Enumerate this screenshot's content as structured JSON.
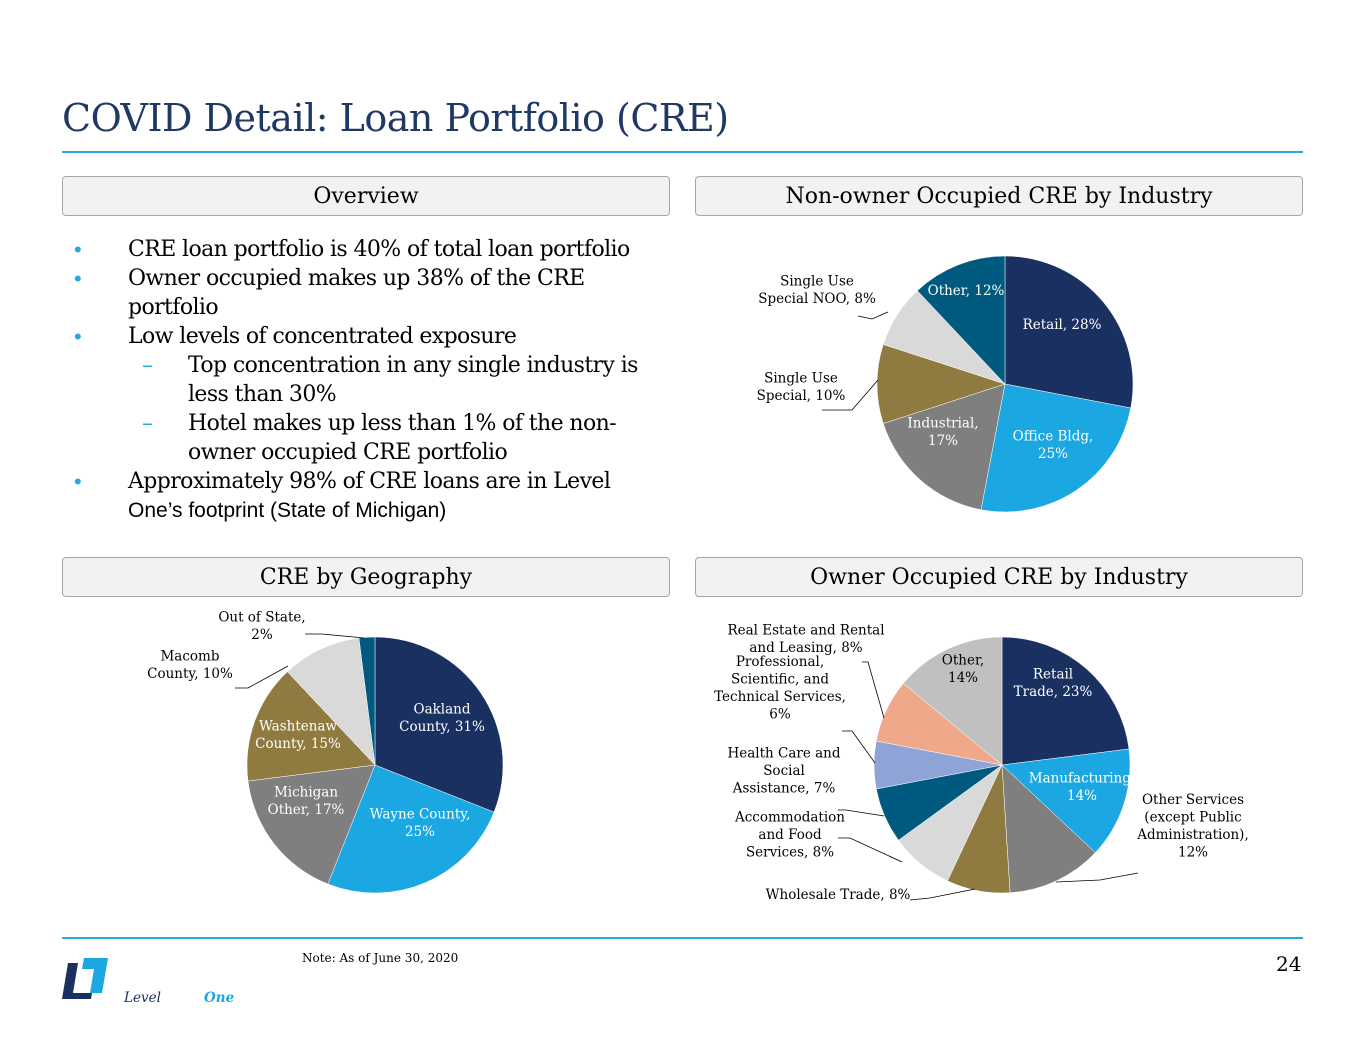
{
  "title": "COVID Detail: Loan Portfolio (CRE)",
  "panels": {
    "overview": "Overview",
    "non_owner": "Non-owner Occupied CRE by Industry",
    "geography": "CRE by Geography",
    "owner": "Owner Occupied CRE by Industry"
  },
  "overview": {
    "b1": "CRE loan portfolio is 40% of total loan portfolio",
    "b2_line1": "Owner occupied makes up 38% of the CRE",
    "b2_line2": "portfolio",
    "b3": "Low levels of concentrated exposure",
    "s1_line1": "Top concentration in any single industry is",
    "s1_line2": "less than 30%",
    "s2_line1": "Hotel makes up less than 1% of the non-",
    "s2_line2": "owner occupied CRE portfolio",
    "b4_line1": "Approximately 98% of CRE loans are in Level",
    "b4_line2": "One’s footprint (State of Michigan)",
    "bullet_glyph": "•",
    "dash_glyph": "–"
  },
  "note": "Note: As of June 30, 2020",
  "page_number": "24",
  "logo": {
    "icon": "levelone-logo-icon",
    "word_level": "Level",
    "word_one": "One"
  },
  "colors": {
    "title": "#1f3864",
    "accent": "#2aa7de",
    "navy": "#1a3060",
    "sky": "#1aa7e2",
    "gray": "#7f7f7f",
    "olive": "#8f7b3f",
    "lightgray": "#d9d9d9",
    "teal": "#005a80",
    "silver": "#c0c0c0",
    "salmon": "#f0a88a",
    "periwinkle": "#8ea3d6"
  },
  "chart_data": [
    {
      "id": "non_owner",
      "type": "pie",
      "title": "Non-owner Occupied CRE by Industry",
      "slices": [
        {
          "label": [
            "Retail, 28%"
          ],
          "value": 28,
          "color": "#1a3060"
        },
        {
          "label": [
            "Office Bldg,",
            "25%"
          ],
          "value": 25,
          "color": "#1aa7e2"
        },
        {
          "label": [
            "Industrial,",
            "17%"
          ],
          "value": 17,
          "color": "#7f7f7f"
        },
        {
          "label": [
            "Single Use",
            "Special, 10%"
          ],
          "value": 10,
          "color": "#8f7b3f"
        },
        {
          "label": [
            "Single Use",
            "Special NOO, 8%"
          ],
          "value": 8,
          "color": "#d9d9d9"
        },
        {
          "label": [
            "Other, 12%"
          ],
          "value": 12,
          "color": "#005a80"
        }
      ]
    },
    {
      "id": "geography",
      "type": "pie",
      "title": "CRE by Geography",
      "slices": [
        {
          "label": [
            "Oakland",
            "County, 31%"
          ],
          "value": 31,
          "color": "#1a3060"
        },
        {
          "label": [
            "Wayne County,",
            "25%"
          ],
          "value": 25,
          "color": "#1aa7e2"
        },
        {
          "label": [
            "Michigan",
            "Other, 17%"
          ],
          "value": 17,
          "color": "#7f7f7f"
        },
        {
          "label": [
            "Washtenaw",
            "County, 15%"
          ],
          "value": 15,
          "color": "#8f7b3f"
        },
        {
          "label": [
            "Macomb",
            "County, 10%"
          ],
          "value": 10,
          "color": "#d9d9d9"
        },
        {
          "label": [
            "Out of State,",
            "2%"
          ],
          "value": 2,
          "color": "#005a80"
        }
      ]
    },
    {
      "id": "owner",
      "type": "pie",
      "title": "Owner Occupied CRE by Industry",
      "slices": [
        {
          "label": [
            "Retail",
            "Trade, 23%"
          ],
          "value": 23,
          "color": "#1a3060"
        },
        {
          "label": [
            "Manufacturing,",
            "14%"
          ],
          "value": 14,
          "color": "#1aa7e2"
        },
        {
          "label": [
            "Other Services",
            "(except Public",
            "Administration),",
            "12%"
          ],
          "value": 12,
          "color": "#7f7f7f"
        },
        {
          "label": [
            "Wholesale Trade, 8%"
          ],
          "value": 8,
          "color": "#8f7b3f"
        },
        {
          "label": [
            "Accommodation",
            "and Food",
            "Services, 8%"
          ],
          "value": 8,
          "color": "#d9d9d9"
        },
        {
          "label": [
            "Health Care and",
            "Social",
            "Assistance, 7%"
          ],
          "value": 7,
          "color": "#005a80"
        },
        {
          "label": [
            "Professional,",
            "Scientific, and",
            "Technical Services,",
            "6%"
          ],
          "value": 6,
          "color": "#8ea3d6"
        },
        {
          "label": [
            "Real Estate and Rental",
            "and Leasing, 8%"
          ],
          "value": 8,
          "color": "#f0a88a"
        },
        {
          "label": [
            "Other,",
            "14%"
          ],
          "value": 14,
          "color": "#c0c0c0"
        }
      ]
    }
  ]
}
